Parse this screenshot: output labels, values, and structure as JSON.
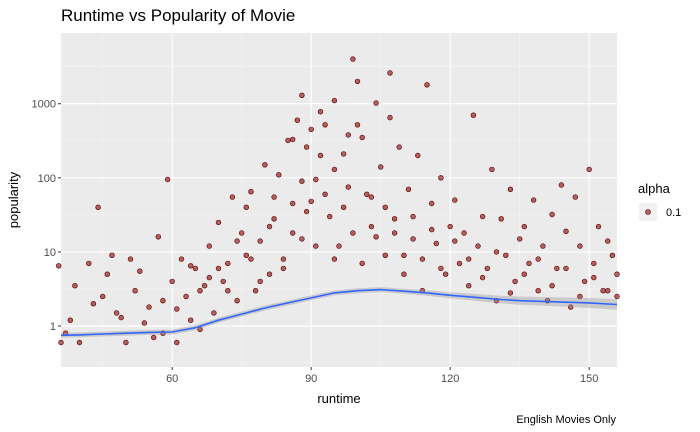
{
  "chart_data": {
    "type": "scatter",
    "title": "Runtime vs Popularity of Movie",
    "caption": "English Movies Only",
    "xlabel": "runtime",
    "ylabel": "popularity",
    "x_ticks": [
      60,
      90,
      120,
      150
    ],
    "y_ticks": [
      1,
      10,
      100,
      1000
    ],
    "y_tick_labels": [
      "1",
      "10",
      "100",
      "1000"
    ],
    "xlim": [
      36,
      156
    ],
    "ylim": [
      0.28,
      9000
    ],
    "y_scale": "log10",
    "grid": true,
    "panel_background": "#ebebeb",
    "legend": {
      "title": "alpha",
      "label": "0.1",
      "position": "right"
    },
    "point_color": "#8b0000",
    "smooth_color": "#3366ff",
    "points": [
      [
        36,
        0.6
      ],
      [
        37,
        0.8
      ],
      [
        38,
        1.2
      ],
      [
        40,
        0.6
      ],
      [
        42,
        7
      ],
      [
        44,
        40
      ],
      [
        45,
        2.5
      ],
      [
        47,
        9
      ],
      [
        48,
        1.5
      ],
      [
        50,
        0.6
      ],
      [
        52,
        3
      ],
      [
        53,
        5.5
      ],
      [
        55,
        1.8
      ],
      [
        56,
        0.7
      ],
      [
        57,
        16
      ],
      [
        58,
        2.2
      ],
      [
        59,
        95
      ],
      [
        60,
        4
      ],
      [
        61,
        0.6
      ],
      [
        62,
        8
      ],
      [
        63,
        2.5
      ],
      [
        64,
        1.2
      ],
      [
        65,
        6
      ],
      [
        66,
        0.9
      ],
      [
        67,
        3.5
      ],
      [
        68,
        12
      ],
      [
        69,
        1.5
      ],
      [
        70,
        25
      ],
      [
        71,
        4
      ],
      [
        72,
        7
      ],
      [
        73,
        55
      ],
      [
        74,
        2.2
      ],
      [
        75,
        18
      ],
      [
        76,
        9
      ],
      [
        77,
        65
      ],
      [
        78,
        3
      ],
      [
        79,
        14
      ],
      [
        80,
        150
      ],
      [
        81,
        5
      ],
      [
        82,
        28
      ],
      [
        83,
        110
      ],
      [
        84,
        8
      ],
      [
        85,
        320
      ],
      [
        86,
        45
      ],
      [
        87,
        600
      ],
      [
        88,
        15
      ],
      [
        89,
        260
      ],
      [
        90,
        48
      ],
      [
        91,
        95
      ],
      [
        92,
        200
      ],
      [
        93,
        520
      ],
      [
        94,
        30
      ],
      [
        95,
        130
      ],
      [
        96,
        12
      ],
      [
        97,
        210
      ],
      [
        98,
        75
      ],
      [
        99,
        4000
      ],
      [
        100,
        2000
      ],
      [
        101,
        350
      ],
      [
        102,
        60
      ],
      [
        103,
        22
      ],
      [
        104,
        1020
      ],
      [
        105,
        140
      ],
      [
        106,
        40
      ],
      [
        107,
        650
      ],
      [
        108,
        18
      ],
      [
        109,
        260
      ],
      [
        110,
        9
      ],
      [
        111,
        70
      ],
      [
        112,
        30
      ],
      [
        113,
        200
      ],
      [
        114,
        8
      ],
      [
        115,
        1800
      ],
      [
        116,
        45
      ],
      [
        117,
        13
      ],
      [
        118,
        100
      ],
      [
        119,
        5
      ],
      [
        120,
        22
      ],
      [
        121,
        50
      ],
      [
        122,
        7
      ],
      [
        123,
        18
      ],
      [
        124,
        3.5
      ],
      [
        125,
        700
      ],
      [
        126,
        12
      ],
      [
        127,
        30
      ],
      [
        128,
        6
      ],
      [
        129,
        130
      ],
      [
        130,
        2.2
      ],
      [
        131,
        28
      ],
      [
        132,
        9
      ],
      [
        133,
        70
      ],
      [
        134,
        4
      ],
      [
        135,
        15
      ],
      [
        136,
        22
      ],
      [
        137,
        7
      ],
      [
        138,
        50
      ],
      [
        139,
        3
      ],
      [
        140,
        12
      ],
      [
        141,
        2.2
      ],
      [
        142,
        32
      ],
      [
        143,
        6
      ],
      [
        144,
        80
      ],
      [
        145,
        19
      ],
      [
        146,
        1.8
      ],
      [
        147,
        55
      ],
      [
        148,
        12
      ],
      [
        149,
        4
      ],
      [
        150,
        130
      ],
      [
        151,
        7
      ],
      [
        152,
        22
      ],
      [
        153,
        3
      ],
      [
        154,
        14
      ],
      [
        155,
        9
      ],
      [
        156,
        2.5
      ],
      [
        35.5,
        6.5
      ],
      [
        39,
        3.5
      ],
      [
        43,
        2
      ],
      [
        46,
        5
      ],
      [
        49,
        1.3
      ],
      [
        51,
        8
      ],
      [
        54,
        1.1
      ],
      [
        58,
        0.8
      ],
      [
        61,
        1.7
      ],
      [
        64,
        6.5
      ],
      [
        66,
        3
      ],
      [
        68,
        4.5
      ],
      [
        70,
        6
      ],
      [
        72,
        3
      ],
      [
        74,
        14
      ],
      [
        76,
        40
      ],
      [
        77,
        8
      ],
      [
        79,
        4
      ],
      [
        81,
        22
      ],
      [
        82,
        55
      ],
      [
        84,
        6
      ],
      [
        86,
        18
      ],
      [
        88,
        90
      ],
      [
        89,
        35
      ],
      [
        91,
        12
      ],
      [
        93,
        60
      ],
      [
        95,
        8
      ],
      [
        97,
        40
      ],
      [
        99,
        18
      ],
      [
        101,
        7
      ],
      [
        103,
        55
      ],
      [
        104,
        16
      ],
      [
        106,
        9
      ],
      [
        108,
        28
      ],
      [
        110,
        5
      ],
      [
        112,
        15
      ],
      [
        114,
        3
      ],
      [
        116,
        20
      ],
      [
        118,
        6
      ],
      [
        121,
        14
      ],
      [
        124,
        8
      ],
      [
        127,
        4.5
      ],
      [
        130,
        10
      ],
      [
        133,
        2.8
      ],
      [
        136,
        5
      ],
      [
        139,
        8
      ],
      [
        142,
        3.5
      ],
      [
        145,
        6
      ],
      [
        148,
        2.5
      ],
      [
        151,
        4.5
      ],
      [
        154,
        3
      ],
      [
        156,
        5
      ],
      [
        90,
        450
      ],
      [
        92,
        780
      ],
      [
        86,
        330
      ],
      [
        95,
        1100
      ],
      [
        98,
        380
      ],
      [
        107,
        2600
      ],
      [
        88,
        1300
      ],
      [
        100,
        520
      ]
    ],
    "smooth": [
      [
        36,
        0.75
      ],
      [
        40,
        0.76
      ],
      [
        45,
        0.78
      ],
      [
        50,
        0.8
      ],
      [
        55,
        0.82
      ],
      [
        60,
        0.83
      ],
      [
        65,
        0.95
      ],
      [
        70,
        1.2
      ],
      [
        75,
        1.45
      ],
      [
        80,
        1.75
      ],
      [
        85,
        2.05
      ],
      [
        90,
        2.4
      ],
      [
        95,
        2.8
      ],
      [
        100,
        3.0
      ],
      [
        105,
        3.1
      ],
      [
        110,
        2.95
      ],
      [
        115,
        2.8
      ],
      [
        120,
        2.6
      ],
      [
        125,
        2.45
      ],
      [
        130,
        2.3
      ],
      [
        135,
        2.2
      ],
      [
        140,
        2.15
      ],
      [
        145,
        2.1
      ],
      [
        150,
        2.05
      ],
      [
        156,
        1.95
      ]
    ]
  }
}
